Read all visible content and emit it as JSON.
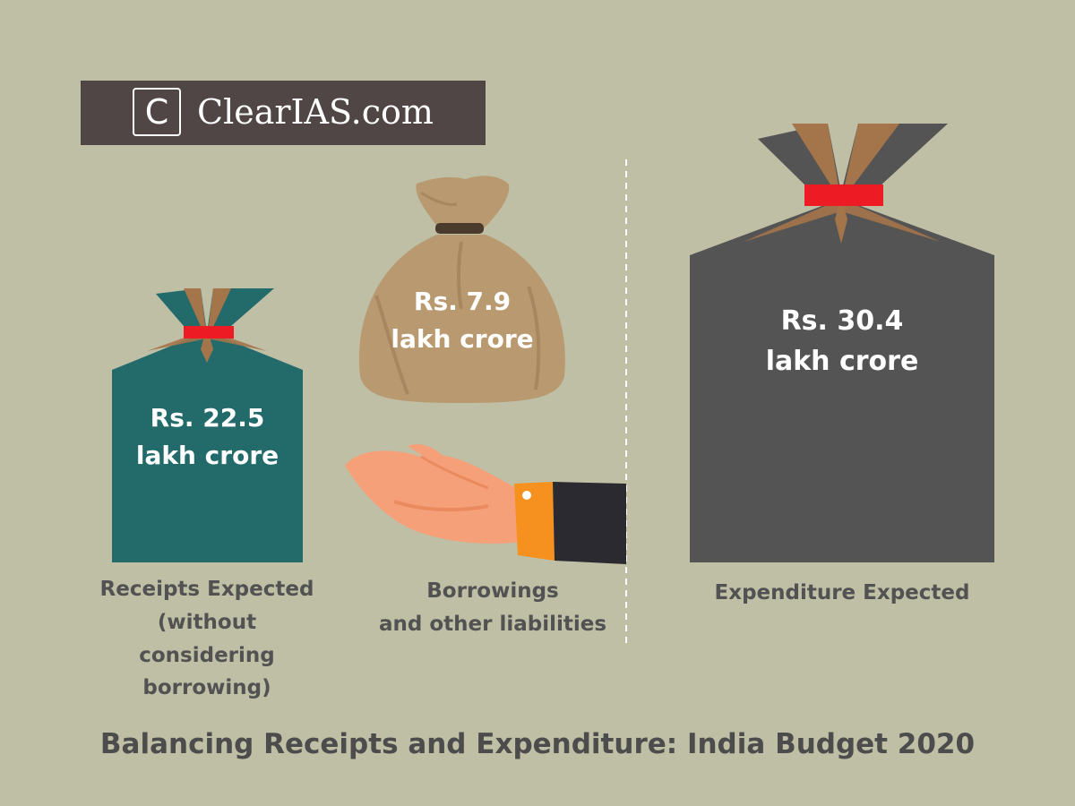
{
  "logo": {
    "letter": "C",
    "text": "ClearIAS.com"
  },
  "receipts": {
    "value": "Rs. 22.5\nlakh crore",
    "caption": "Receipts Expected\n(without considering\nborrowing)",
    "color": "#236b6b"
  },
  "borrowings": {
    "value": "Rs. 7.9\nlakh crore",
    "caption": "Borrowings\nand other liabilities",
    "color": "#b99a70"
  },
  "expenditure": {
    "value": "Rs. 30.4\nlakh crore",
    "caption": "Expenditure Expected",
    "color": "#545454"
  },
  "accent": "#ed1c24",
  "title": "Balancing Receipts and Expenditure: India Budget 2020",
  "icons": [
    "money-bag-icon",
    "open-hand-icon"
  ]
}
